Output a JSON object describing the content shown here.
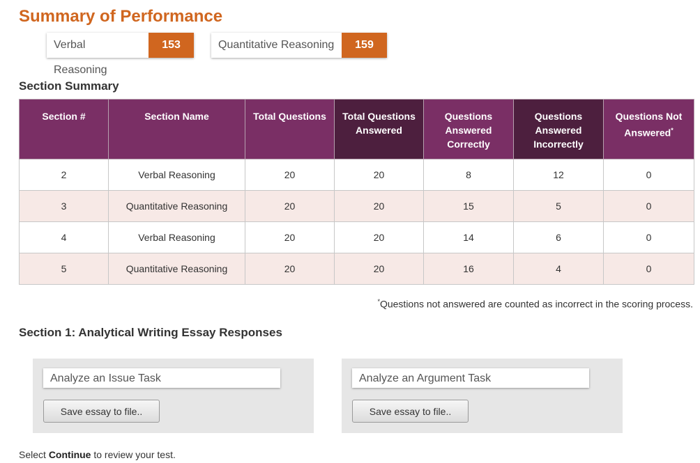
{
  "title": "Summary of Performance",
  "scores": [
    {
      "label": "Verbal Reasoning",
      "value": "153"
    },
    {
      "label": "Quantitative Reasoning",
      "value": "159"
    }
  ],
  "section_summary": {
    "heading": "Section Summary",
    "headers": [
      "Section #",
      "Section Name",
      "Total Questions",
      "Total Questions Answered",
      "Questions Answered Correctly",
      "Questions Answered Incorrectly",
      "Questions Not Answered"
    ],
    "header_footnote_marker": "*",
    "rows": [
      [
        "2",
        "Verbal Reasoning",
        "20",
        "20",
        "8",
        "12",
        "0"
      ],
      [
        "3",
        "Quantitative Reasoning",
        "20",
        "20",
        "15",
        "5",
        "0"
      ],
      [
        "4",
        "Verbal Reasoning",
        "20",
        "20",
        "14",
        "6",
        "0"
      ],
      [
        "5",
        "Quantitative Reasoning",
        "20",
        "20",
        "16",
        "4",
        "0"
      ]
    ],
    "footnote_marker": "*",
    "footnote": "Questions not answered are counted as incorrect in the scoring process."
  },
  "essay_section": {
    "heading": "Section 1: Analytical Writing Essay Responses",
    "tasks": [
      {
        "title": "Analyze an Issue Task",
        "button": "Save essay to file.."
      },
      {
        "title": "Analyze an Argument Task",
        "button": "Save essay to file.."
      }
    ]
  },
  "instruction": {
    "prefix": "Select ",
    "bold": "Continue",
    "suffix": " to review your test."
  },
  "colors": {
    "accent": "#d0661f",
    "header_purple": "#7a2f65",
    "header_dark_purple": "#4d1f3e",
    "row_alt": "#f7e9e6",
    "panel_gray": "#e6e6e6"
  }
}
